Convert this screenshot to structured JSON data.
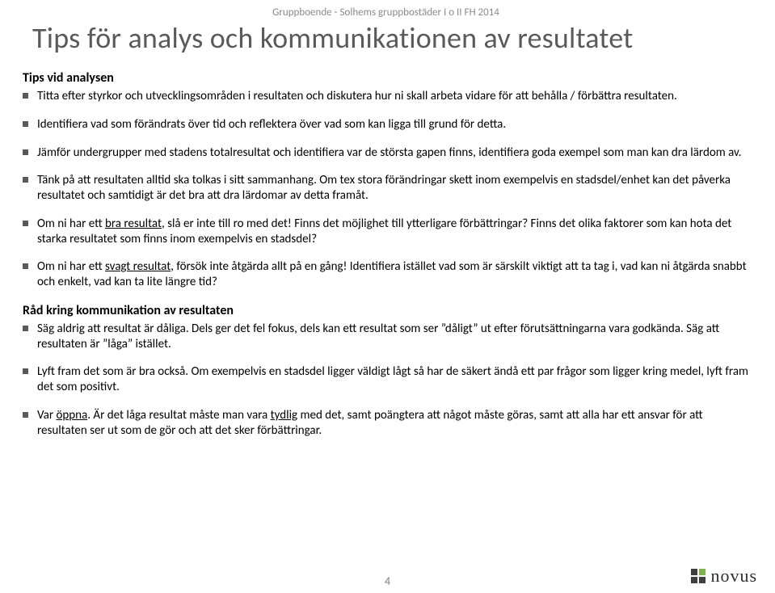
{
  "header": "Gruppboende - Solhems gruppbostäder I o II  FH 2014",
  "title": "Tips för analys och kommunikationen av resultatet",
  "section1_heading": "Tips vid analysen",
  "section1_items": [
    "Titta efter styrkor och utvecklingsområden i resultaten och diskutera hur ni skall arbeta vidare för att behålla / förbättra resultaten.",
    "Identifiera vad som förändrats över tid och reflektera över vad som kan ligga till grund för detta.",
    "Jämför undergrupper med stadens totalresultat och identifiera var de största gapen finns, identifiera goda exempel som man kan dra lärdom av.",
    "Tänk på att resultaten alltid ska tolkas i sitt sammanhang. Om tex stora förändringar skett inom exempelvis en stadsdel/enhet kan det påverka resultatet och samtidigt är det bra att dra lärdomar av detta framåt."
  ],
  "s1_item5_pre": "Om ni har ett ",
  "s1_item5_u": "bra resultat",
  "s1_item5_post": ", slå er inte till ro med det! Finns det möjlighet till ytterligare förbättringar? Finns det olika faktorer som kan hota det starka resultatet som finns inom exempelvis en stadsdel?",
  "s1_item6_pre": "Om ni har ett ",
  "s1_item6_u": "svagt resultat",
  "s1_item6_post": ", försök inte åtgärda allt på en gång! Identifiera istället vad som är särskilt viktigt att ta tag i, vad kan ni åtgärda snabbt och enkelt, vad kan ta lite längre tid?",
  "section2_heading": "Råd kring kommunikation av resultaten",
  "s2_item1": "Säg aldrig att resultat är dåliga. Dels ger det fel fokus, dels kan ett resultat som ser ”dåligt” ut efter förutsättningarna vara godkända. Säg att resultaten är ”låga” istället.",
  "s2_item2": "Lyft fram det som är bra också. Om exempelvis en stadsdel ligger väldigt lågt så har de säkert ändå ett par frågor som ligger kring medel, lyft fram det som positivt.",
  "s2_item3_pre": "Var ",
  "s2_item3_u1": "öppna",
  "s2_item3_mid": ". Är det låga resultat måste man vara ",
  "s2_item3_u2": "tydlig",
  "s2_item3_post": " med det, samt poängtera att något måste göras, samt att alla har ett ansvar för att resultaten ser ut som de gör och att det sker förbättringar.",
  "page_number": "4",
  "logo_text": "novus"
}
